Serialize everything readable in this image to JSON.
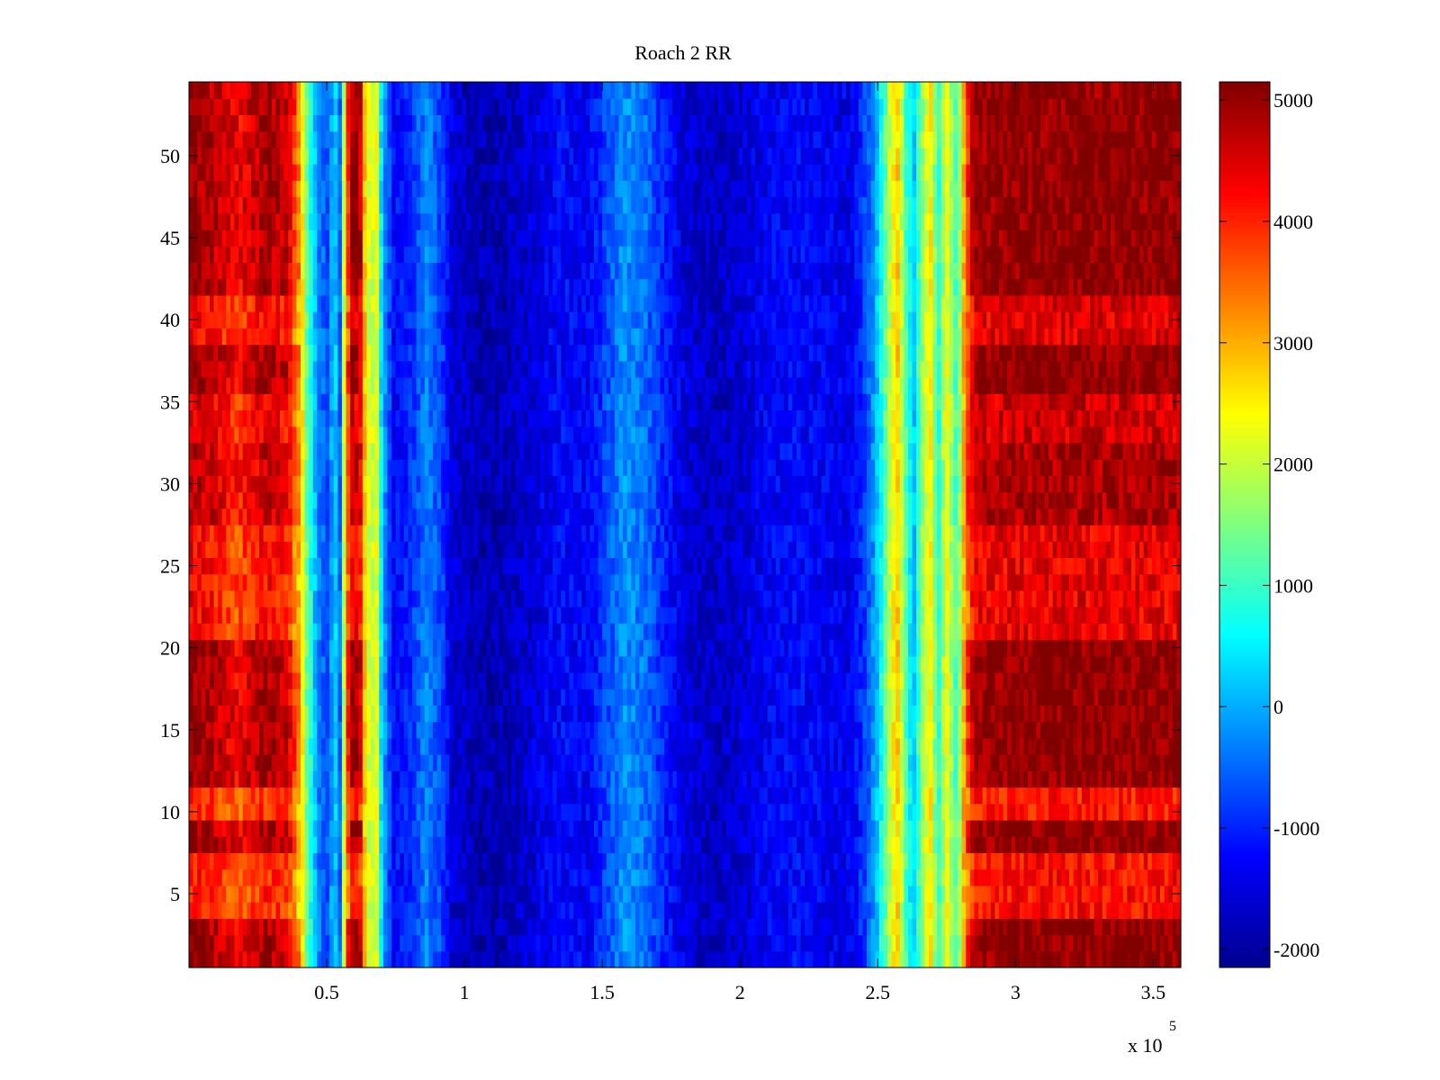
{
  "chart_data": {
    "type": "heatmap",
    "title": "Roach 2 RR",
    "xlabel": "",
    "ylabel": "",
    "x_exponent_label": "x 10",
    "x_exponent_power": "5",
    "xlim": [
      0,
      360000
    ],
    "ylim": [
      0.5,
      54.5
    ],
    "rows": 54,
    "x_ticks": [
      {
        "value": 50000,
        "label": "0.5"
      },
      {
        "value": 100000,
        "label": "1"
      },
      {
        "value": 150000,
        "label": "1.5"
      },
      {
        "value": 200000,
        "label": "2"
      },
      {
        "value": 250000,
        "label": "2.5"
      },
      {
        "value": 300000,
        "label": "3"
      },
      {
        "value": 350000,
        "label": "3.5"
      }
    ],
    "y_ticks": [
      {
        "value": 5,
        "label": "5"
      },
      {
        "value": 10,
        "label": "10"
      },
      {
        "value": 15,
        "label": "15"
      },
      {
        "value": 20,
        "label": "20"
      },
      {
        "value": 25,
        "label": "25"
      },
      {
        "value": 30,
        "label": "30"
      },
      {
        "value": 35,
        "label": "35"
      },
      {
        "value": 40,
        "label": "40"
      },
      {
        "value": 45,
        "label": "45"
      },
      {
        "value": 50,
        "label": "50"
      }
    ],
    "colorbar": {
      "colormap": "jet",
      "range": [
        -2150,
        5150
      ],
      "ticks": [
        {
          "value": 5000,
          "label": "5000"
        },
        {
          "value": 4000,
          "label": "4000"
        },
        {
          "value": 3000,
          "label": "3000"
        },
        {
          "value": 2000,
          "label": "2000"
        },
        {
          "value": 1000,
          "label": "1000"
        },
        {
          "value": 0,
          "label": "0"
        },
        {
          "value": -1000,
          "label": "-1000"
        },
        {
          "value": -2000,
          "label": "-2000"
        }
      ]
    },
    "column_profile": [
      {
        "x": 0,
        "value": 5100
      },
      {
        "x": 8000,
        "value": 4800
      },
      {
        "x": 18000,
        "value": 4300
      },
      {
        "x": 28000,
        "value": 4900
      },
      {
        "x": 36000,
        "value": 4600
      },
      {
        "x": 40000,
        "value": 3300
      },
      {
        "x": 43000,
        "value": 1200
      },
      {
        "x": 47000,
        "value": -300
      },
      {
        "x": 50000,
        "value": -700
      },
      {
        "x": 53000,
        "value": 300
      },
      {
        "x": 55000,
        "value": -600
      },
      {
        "x": 57000,
        "value": 3500
      },
      {
        "x": 59000,
        "value": 5000
      },
      {
        "x": 62000,
        "value": 4900
      },
      {
        "x": 64000,
        "value": 2600
      },
      {
        "x": 66000,
        "value": 1800
      },
      {
        "x": 68000,
        "value": 2500
      },
      {
        "x": 70000,
        "value": 200
      },
      {
        "x": 74000,
        "value": -1200
      },
      {
        "x": 80000,
        "value": -1000
      },
      {
        "x": 86000,
        "value": -300
      },
      {
        "x": 92000,
        "value": -800
      },
      {
        "x": 95000,
        "value": -1500
      },
      {
        "x": 105000,
        "value": -1800
      },
      {
        "x": 115000,
        "value": -1750
      },
      {
        "x": 125000,
        "value": -1500
      },
      {
        "x": 135000,
        "value": -1200
      },
      {
        "x": 145000,
        "value": -1300
      },
      {
        "x": 152000,
        "value": -700
      },
      {
        "x": 158000,
        "value": -200
      },
      {
        "x": 165000,
        "value": -400
      },
      {
        "x": 172000,
        "value": -1000
      },
      {
        "x": 180000,
        "value": -1500
      },
      {
        "x": 190000,
        "value": -1700
      },
      {
        "x": 200000,
        "value": -1550
      },
      {
        "x": 210000,
        "value": -1300
      },
      {
        "x": 220000,
        "value": -1200
      },
      {
        "x": 230000,
        "value": -1300
      },
      {
        "x": 240000,
        "value": -1400
      },
      {
        "x": 246000,
        "value": -700
      },
      {
        "x": 250000,
        "value": 200
      },
      {
        "x": 254000,
        "value": 1800
      },
      {
        "x": 257000,
        "value": 2900
      },
      {
        "x": 260000,
        "value": 1200
      },
      {
        "x": 263000,
        "value": 100
      },
      {
        "x": 266000,
        "value": 1600
      },
      {
        "x": 269000,
        "value": 2600
      },
      {
        "x": 272000,
        "value": 800
      },
      {
        "x": 275000,
        "value": 2400
      },
      {
        "x": 279000,
        "value": 900
      },
      {
        "x": 282000,
        "value": 3700
      },
      {
        "x": 285000,
        "value": 5000
      },
      {
        "x": 300000,
        "value": 5100
      },
      {
        "x": 360000,
        "value": 5100
      }
    ],
    "row_modulation": [
      {
        "rows": [
          1,
          3
        ],
        "factor": 1.0
      },
      {
        "rows": [
          4,
          7
        ],
        "factor": 0.82
      },
      {
        "rows": [
          8,
          9
        ],
        "factor": 1.0
      },
      {
        "rows": [
          10,
          11
        ],
        "factor": 0.8
      },
      {
        "rows": [
          12,
          20
        ],
        "factor": 1.0
      },
      {
        "rows": [
          21,
          27
        ],
        "factor": 0.86
      },
      {
        "rows": [
          28,
          32
        ],
        "factor": 0.95
      },
      {
        "rows": [
          33,
          35
        ],
        "factor": 0.9
      },
      {
        "rows": [
          36,
          38
        ],
        "factor": 1.0
      },
      {
        "rows": [
          39,
          41
        ],
        "factor": 0.88
      },
      {
        "rows": [
          42,
          54
        ],
        "factor": 1.0
      }
    ]
  }
}
